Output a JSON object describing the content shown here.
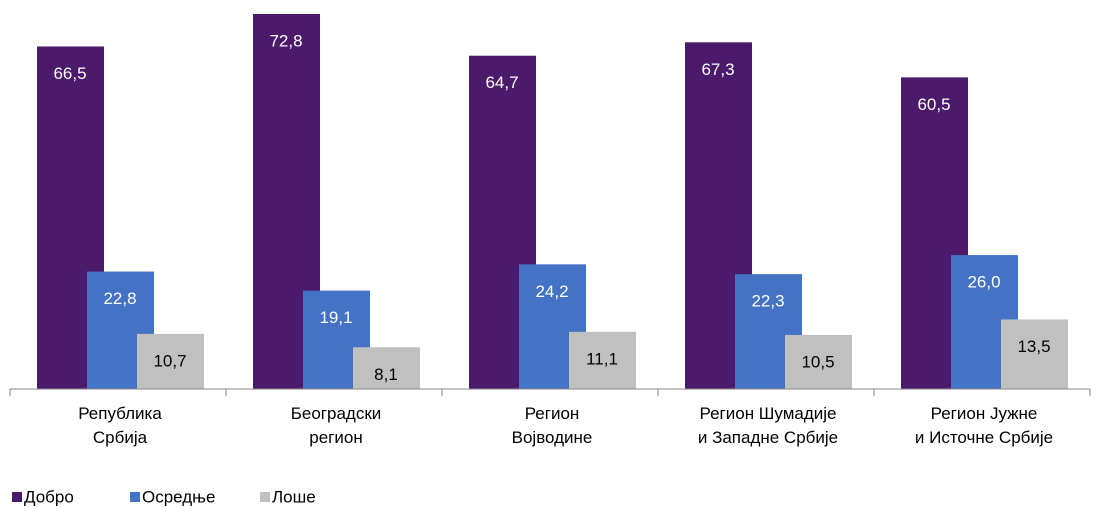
{
  "chart_data": {
    "type": "bar",
    "categories": [
      "Република\nСрбија",
      "Београдски\nрегион",
      "Регион\nВојводине",
      "Регион Шумадије\nи Западне Србије",
      "Регион Јужне\nи Источне Србије"
    ],
    "series": [
      {
        "name": "Добро",
        "color": "#4b1a6b",
        "values": [
          66.5,
          72.8,
          64.7,
          67.3,
          60.5
        ],
        "value_labels": [
          "66,5",
          "72,8",
          "64,7",
          "67,3",
          "60,5"
        ]
      },
      {
        "name": "Осредње",
        "color": "#4472c4",
        "values": [
          22.8,
          19.1,
          24.2,
          22.3,
          26.0
        ],
        "value_labels": [
          "22,8",
          "19,1",
          "24,2",
          "22,3",
          "26,0"
        ]
      },
      {
        "name": "Лоше",
        "color": "#c0c0c0",
        "values": [
          10.7,
          8.1,
          11.1,
          10.5,
          13.5
        ],
        "value_labels": [
          "10,7",
          "8,1",
          "11,1",
          "10,5",
          "13,5"
        ]
      }
    ],
    "legend": "bottom-left"
  }
}
